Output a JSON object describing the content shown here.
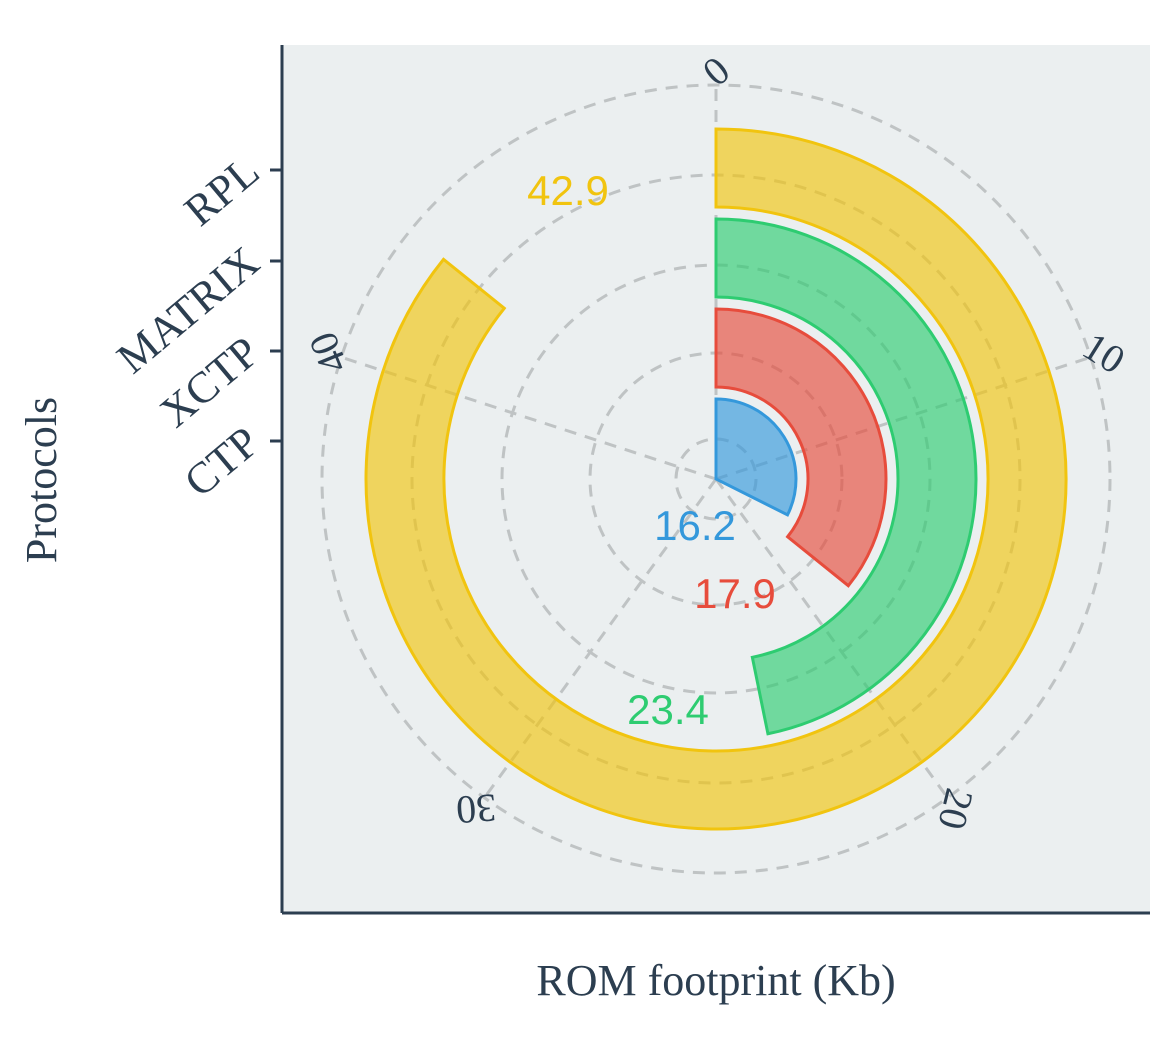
{
  "chart_data": {
    "type": "radial-bar",
    "xlabel": "ROM footprint (Kb)",
    "ylabel": "Protocols",
    "categories": [
      "CTP",
      "XCTP",
      "MATRIX",
      "RPL"
    ],
    "values": [
      16.2,
      17.9,
      23.4,
      42.9
    ],
    "value_labels": [
      "16.2",
      "17.9",
      "23.4",
      "42.9"
    ],
    "colors": [
      "#3498db",
      "#e74c3c",
      "#2ecc71",
      "#f1c40f"
    ],
    "angular_max": 50,
    "angular_ticks": [
      0,
      10,
      20,
      30,
      40
    ],
    "angular_tick_labels": [
      "0",
      "10",
      "20",
      "30",
      "40"
    ],
    "grid": true,
    "panel_background": "#ebeff0",
    "axis_color": "#2c3e50"
  }
}
